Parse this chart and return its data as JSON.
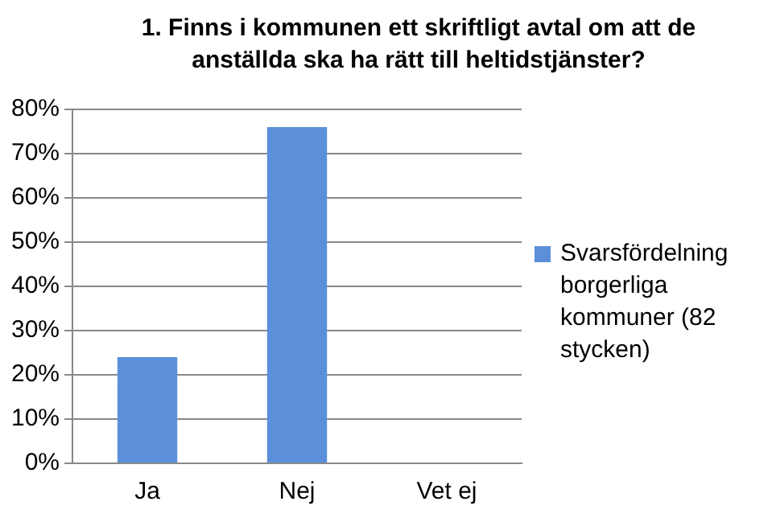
{
  "chart_data": {
    "type": "bar",
    "title": "1. Finns i kommunen ett skriftligt avtal om att de anställda ska ha rätt till heltidstjänster?",
    "categories": [
      "Ja",
      "Nej",
      "Vet ej"
    ],
    "series": [
      {
        "name": "Svarsfördelning borgerliga kommuner (82 stycken)",
        "color": "#5b8fd9",
        "values": [
          24,
          76,
          0
        ]
      }
    ],
    "ylim": [
      0,
      80
    ],
    "yticks": [
      {
        "value": 0,
        "label": "0%"
      },
      {
        "value": 10,
        "label": "10%"
      },
      {
        "value": 20,
        "label": "20%"
      },
      {
        "value": 30,
        "label": "30%"
      },
      {
        "value": 40,
        "label": "40%"
      },
      {
        "value": 50,
        "label": "50%"
      },
      {
        "value": 60,
        "label": "60%"
      },
      {
        "value": 70,
        "label": "70%"
      },
      {
        "value": 80,
        "label": "80%"
      }
    ],
    "grid": "y",
    "legend": "right"
  }
}
